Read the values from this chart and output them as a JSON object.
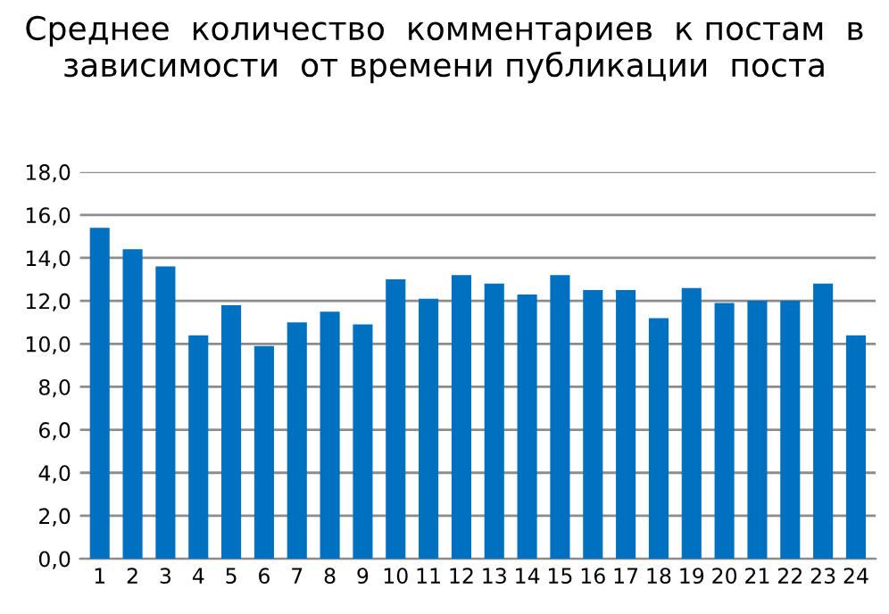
{
  "chart_data": {
    "type": "bar",
    "title": "Среднее  количество  комментариев  к постам  в зависимости  от времени публикации  поста",
    "categories": [
      "1",
      "2",
      "3",
      "4",
      "5",
      "6",
      "7",
      "8",
      "9",
      "10",
      "11",
      "12",
      "13",
      "14",
      "15",
      "16",
      "17",
      "18",
      "19",
      "20",
      "21",
      "22",
      "23",
      "24"
    ],
    "values": [
      15.4,
      14.4,
      13.6,
      10.4,
      11.8,
      9.9,
      11.0,
      11.5,
      10.9,
      13.0,
      12.1,
      13.2,
      12.8,
      12.3,
      13.2,
      12.5,
      12.5,
      11.2,
      12.6,
      11.9,
      12.0,
      12.0,
      12.8,
      10.4
    ],
    "color": "#0070c0",
    "ylim": [
      0,
      18
    ],
    "yticks": [
      {
        "value": 0,
        "label": "0,0"
      },
      {
        "value": 2,
        "label": "2,0"
      },
      {
        "value": 4,
        "label": "4,0"
      },
      {
        "value": 6,
        "label": "6,0"
      },
      {
        "value": 8,
        "label": "8,0"
      },
      {
        "value": 10,
        "label": "10,0"
      },
      {
        "value": 12,
        "label": "12,0"
      },
      {
        "value": 14,
        "label": "14,0"
      },
      {
        "value": 16,
        "label": "16,0"
      },
      {
        "value": 18,
        "label": "18,0"
      }
    ],
    "grid": "y"
  }
}
